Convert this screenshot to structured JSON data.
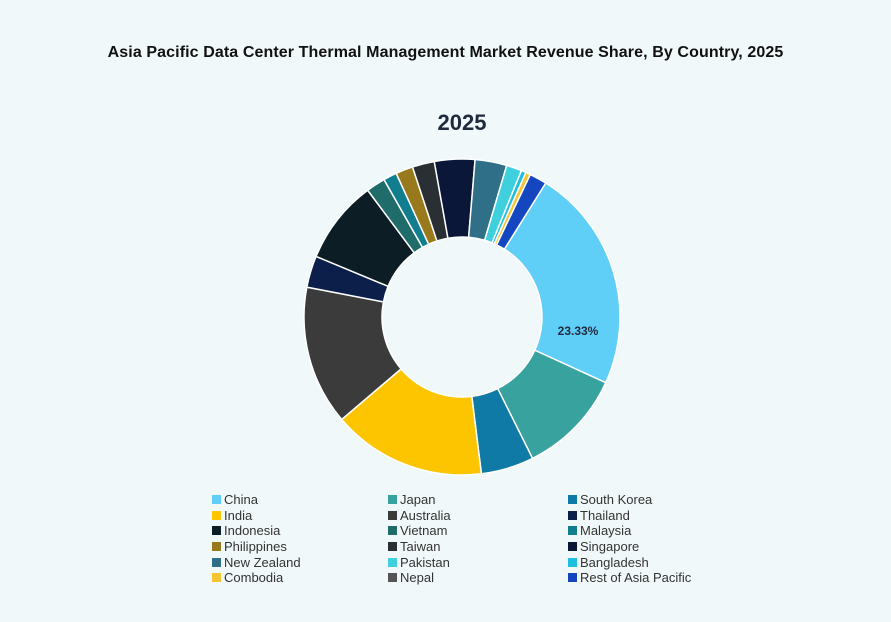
{
  "title": "Asia Pacific Data Center Thermal Management Market Revenue Share, By Country, 2025",
  "year_label": "2025",
  "chart_data": {
    "type": "pie",
    "subtype": "donut",
    "title": "Asia Pacific Data Center Thermal Management Market Revenue Share, By Country, 2025",
    "subtitle": "2025",
    "unit": "%",
    "legend_position": "bottom",
    "annotations": [
      {
        "label": "China",
        "text": "23.33%"
      }
    ],
    "categories": [
      "China",
      "Japan",
      "South Korea",
      "India",
      "Australia",
      "Thailand",
      "Indonesia",
      "Vietnam",
      "Malaysia",
      "Philippines",
      "Taiwan",
      "Singapore",
      "New Zealand",
      "Pakistan",
      "Bangladesh",
      "Combodia",
      "Nepal",
      "Rest of Asia Pacific"
    ],
    "values": [
      23.33,
      11.0,
      5.5,
      16.0,
      14.5,
      3.3,
      8.7,
      2.0,
      1.4,
      1.8,
      2.3,
      4.2,
      3.3,
      1.6,
      0.5,
      0.5,
      0.0,
      1.8
    ],
    "colors": [
      "#5fcff8",
      "#37a29e",
      "#0f7aa6",
      "#fdc400",
      "#3b3b3b",
      "#0c1f4a",
      "#0d1d26",
      "#1f6c6a",
      "#107e8e",
      "#98791c",
      "#2a2f33",
      "#0b1738",
      "#2f6f88",
      "#3ed0dc",
      "#1ec0e0",
      "#f7c431",
      "#555555",
      "#1446c0"
    ]
  },
  "legend": [
    {
      "label": "China",
      "color": "#5fcff8"
    },
    {
      "label": "Japan",
      "color": "#37a29e"
    },
    {
      "label": "South Korea",
      "color": "#0f7aa6"
    },
    {
      "label": "India",
      "color": "#fdc400"
    },
    {
      "label": "Australia",
      "color": "#3b3b3b"
    },
    {
      "label": "Thailand",
      "color": "#0c1f4a"
    },
    {
      "label": "Indonesia",
      "color": "#0d1d26"
    },
    {
      "label": "Vietnam",
      "color": "#1f6c6a"
    },
    {
      "label": "Malaysia",
      "color": "#107e8e"
    },
    {
      "label": "Philippines",
      "color": "#98791c"
    },
    {
      "label": "Taiwan",
      "color": "#2a2f33"
    },
    {
      "label": "Singapore",
      "color": "#0b1738"
    },
    {
      "label": "New Zealand",
      "color": "#2f6f88"
    },
    {
      "label": "Pakistan",
      "color": "#3ed0dc"
    },
    {
      "label": "Bangladesh",
      "color": "#1ec0e0"
    },
    {
      "label": "Combodia",
      "color": "#f7c431"
    },
    {
      "label": "Nepal",
      "color": "#555555"
    },
    {
      "label": "Rest of Asia Pacific",
      "color": "#1446c0"
    }
  ],
  "china_label": "23.33%"
}
